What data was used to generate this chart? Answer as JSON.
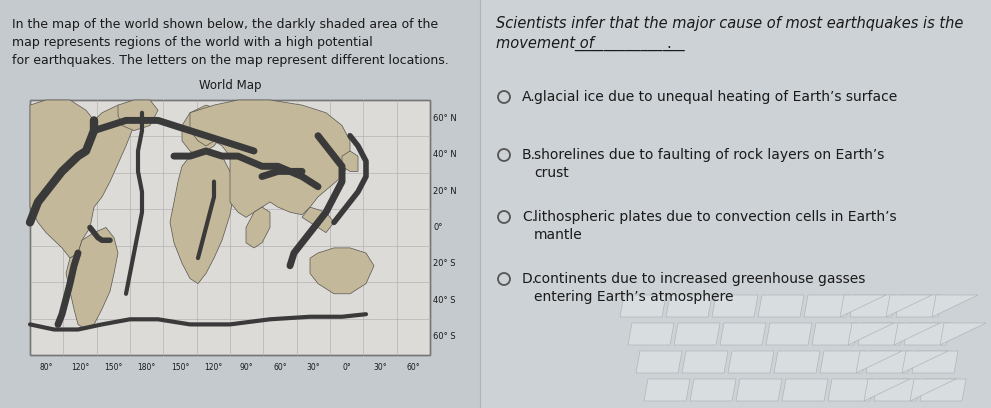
{
  "bg_color": "#b8bec4",
  "left_panel_bg": "#c8cdd2",
  "right_panel_bg": "#cdd2d7",
  "left_text": "In the map of the world shown below, the darkly shaded area of the\nmap represents regions of the world with a high potential\nfor earthquakes. The letters on the map represent different locations.",
  "map_title": "World Map",
  "question_line1": "Scientists infer that the major cause of most earthquakes is the",
  "question_line2": "movement of",
  "question_underline": "_______________",
  "question_period": ".",
  "options": [
    {
      "label": "A.",
      "text": "glacial ice due to unequal heating of Earth’s surface",
      "multiline": false
    },
    {
      "label": "B.",
      "text": "shorelines due to faulting of rock layers on Earth’s\ncrust",
      "multiline": true
    },
    {
      "label": "C.",
      "text": "lithospheric plates due to convection cells in Earth’s\nmantle",
      "multiline": true
    },
    {
      "label": "D.",
      "text": "continents due to increased greenhouse gasses\nentering Earth’s atmosphere",
      "multiline": true
    }
  ],
  "lat_labels": [
    "60° N",
    "40° N",
    "20° N",
    "0°",
    "20° S",
    "40° S",
    "60° S"
  ],
  "lon_labels": [
    "80°",
    "120°",
    "150°",
    "180°",
    "150°",
    "120°",
    "90°",
    "60°",
    "30°",
    "0°",
    "30°",
    "60°"
  ],
  "map_bg": "#dddbd8",
  "continent_light": "#c4b89a",
  "earthquake_dark": "#3a3a3a",
  "grid_color": "#aaaaaa",
  "text_color": "#1a1a1a",
  "circle_color": "#555555",
  "font_size_left": 9.0,
  "font_size_map_title": 8.5,
  "font_size_question": 10.5,
  "font_size_options": 10.0,
  "font_size_lat": 6.0,
  "font_size_lon": 5.5,
  "key_fill": "#d8dde0",
  "key_edge": "#b0b5b8"
}
